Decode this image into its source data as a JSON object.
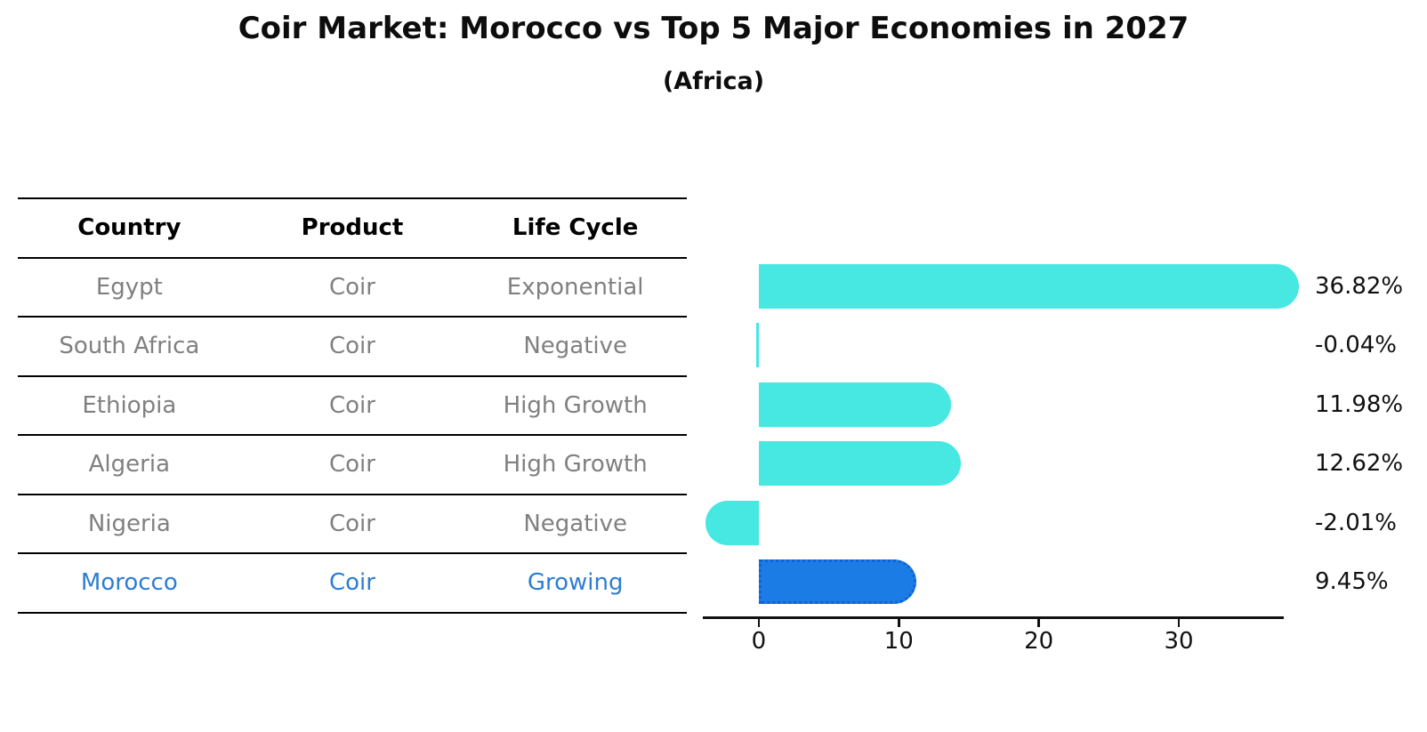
{
  "title": "Coir Market: Morocco vs Top 5 Major Economies in 2027",
  "subtitle": "(Africa)",
  "table": {
    "headers": [
      "Country",
      "Product",
      "Life Cycle"
    ],
    "rows": [
      {
        "country": "Egypt",
        "product": "Coir",
        "life_cycle": "Exponential",
        "highlight": false
      },
      {
        "country": "South Africa",
        "product": "Coir",
        "life_cycle": "Negative",
        "highlight": false
      },
      {
        "country": "Ethiopia",
        "product": "Coir",
        "life_cycle": "High Growth",
        "highlight": false
      },
      {
        "country": "Algeria",
        "product": "Coir",
        "life_cycle": "High Growth",
        "highlight": false
      },
      {
        "country": "Nigeria",
        "product": "Coir",
        "life_cycle": "Negative",
        "highlight": false
      },
      {
        "country": "Morocco",
        "product": "Coir",
        "life_cycle": "Growing",
        "highlight": true
      }
    ]
  },
  "chart_data": {
    "type": "bar",
    "orientation": "horizontal",
    "title": "Coir Market: Morocco vs Top 5 Major Economies in 2027",
    "subtitle": "(Africa)",
    "categories": [
      "Egypt",
      "South Africa",
      "Ethiopia",
      "Algeria",
      "Nigeria",
      "Morocco"
    ],
    "values": [
      36.82,
      -0.04,
      11.98,
      12.62,
      -2.01,
      9.45
    ],
    "value_labels": [
      "36.82%",
      "-0.04%",
      "11.98%",
      "12.62%",
      "-2.01%",
      "9.45%"
    ],
    "unit": "%",
    "xticks": [
      0,
      10,
      20,
      30
    ],
    "xlim": [
      -4.0,
      37.5
    ],
    "grid": false,
    "legend": null,
    "bar_color": "#47E7E2",
    "highlight_index": 5,
    "highlight_color": "#1B7CE5",
    "highlight_border_color": "#0F62D6",
    "axis_color": "#111111"
  },
  "colors": {
    "header_text": "#000000",
    "row_text": "#808080",
    "highlight_text": "#2E7DD1"
  }
}
